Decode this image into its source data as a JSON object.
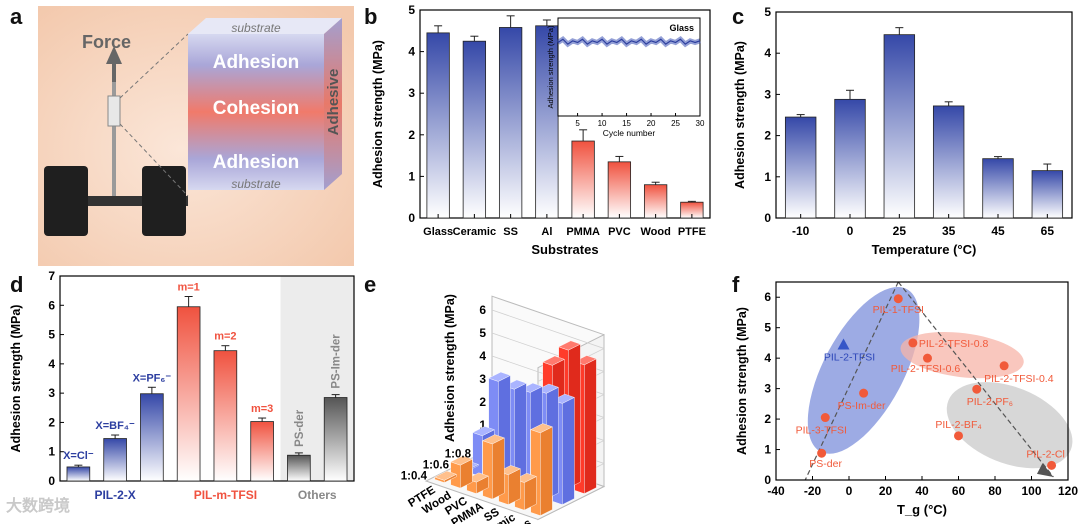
{
  "panels": {
    "a": "a",
    "b": "b",
    "c": "c",
    "d": "d",
    "e": "e",
    "f": "f"
  },
  "panel_a": {
    "force_label": "Force",
    "layers": [
      "substrate",
      "Adhesion",
      "Cohesion",
      "Adhesion",
      "substrate"
    ],
    "side_label": "Adhesive"
  },
  "watermark": "大数跨境",
  "chart_data": [
    {
      "id": "b",
      "type": "bar",
      "xlabel": "Substrates",
      "ylabel": "Adhesion strength (MPa)",
      "ylim": [
        0,
        5
      ],
      "yticks": [
        0,
        1,
        2,
        3,
        4,
        5
      ],
      "categories": [
        "Glass",
        "Ceramic",
        "SS",
        "Al",
        "PMMA",
        "PVC",
        "Wood",
        "PTFE"
      ],
      "values": [
        4.45,
        4.25,
        4.58,
        4.62,
        1.85,
        1.35,
        0.8,
        0.38
      ],
      "errors": [
        0.17,
        0.12,
        0.28,
        0.14,
        0.27,
        0.13,
        0.06,
        0.02
      ],
      "colors": [
        "blue",
        "blue",
        "blue",
        "blue",
        "red",
        "red",
        "red",
        "red"
      ],
      "inset": {
        "type": "line",
        "title": "Glass",
        "xlabel": "Cycle number",
        "ylabel": "Adhesion strength (MPa)",
        "xticks": [
          5,
          10,
          15,
          20,
          25,
          30
        ],
        "xlim": [
          1,
          30
        ],
        "ylim": [
          0,
          6
        ],
        "x": [
          1,
          2,
          3,
          4,
          5,
          6,
          7,
          8,
          9,
          10,
          11,
          12,
          13,
          14,
          15,
          16,
          17,
          18,
          19,
          20,
          21,
          22,
          23,
          24,
          25,
          26,
          27,
          28,
          29,
          30
        ],
        "y": [
          4.5,
          4.7,
          4.4,
          4.6,
          4.5,
          4.7,
          4.4,
          4.6,
          4.5,
          4.7,
          4.4,
          4.6,
          4.5,
          4.7,
          4.4,
          4.6,
          4.5,
          4.7,
          4.4,
          4.6,
          4.5,
          4.7,
          4.4,
          4.6,
          4.5,
          4.7,
          4.4,
          4.6,
          4.5,
          4.6
        ]
      }
    },
    {
      "id": "c",
      "type": "bar",
      "xlabel": "Temperature (°C)",
      "ylabel": "Adhesion strength (MPa)",
      "ylim": [
        0,
        5
      ],
      "yticks": [
        0,
        1,
        2,
        3,
        4,
        5
      ],
      "categories": [
        "-10",
        "0",
        "25",
        "35",
        "45",
        "65"
      ],
      "values": [
        2.45,
        2.88,
        4.45,
        2.72,
        1.44,
        1.15
      ],
      "errors": [
        0.06,
        0.22,
        0.17,
        0.1,
        0.05,
        0.16
      ]
    },
    {
      "id": "d",
      "type": "bar",
      "ylabel": "Adhesion strength (MPa)",
      "ylim": [
        0,
        7
      ],
      "yticks": [
        0,
        1,
        2,
        3,
        4,
        5,
        6,
        7
      ],
      "categories": [
        "X=Cl⁻",
        "X=BF₄⁻",
        "X=PF₆⁻",
        "m=1",
        "m=2",
        "m=3",
        "PS-der",
        "PS-Im-der"
      ],
      "values": [
        0.48,
        1.45,
        2.98,
        5.95,
        4.45,
        2.03,
        0.88,
        2.85
      ],
      "errors": [
        0.06,
        0.12,
        0.22,
        0.35,
        0.17,
        0.12,
        0.08,
        0.1
      ],
      "groups": [
        "PIL-2-X",
        "PIL-m-TFSI",
        "Others"
      ],
      "colors": [
        "blue",
        "blue",
        "blue",
        "red",
        "red",
        "red",
        "gray",
        "gray"
      ]
    },
    {
      "id": "e",
      "type": "bar3d",
      "zlabel": "Adhesion strength (MPa)",
      "zticks": [
        1,
        2,
        3,
        4,
        5,
        6
      ],
      "rows": [
        "1:0.8",
        "1:0.6",
        "1:0.4"
      ],
      "cols": [
        "PTFE",
        "Wood",
        "PVC",
        "PMMA",
        "SS",
        "Ceramic",
        "Glass"
      ],
      "values": [
        [
          0.2,
          0.3,
          2.0,
          3.0,
          5.1,
          6.0,
          5.6
        ],
        [
          0.05,
          1.8,
          4.4,
          4.3,
          4.4,
          4.6,
          4.4
        ],
        [
          0.1,
          1.0,
          0.5,
          2.4,
          1.3,
          1.2,
          3.6
        ]
      ],
      "colors": [
        "red",
        "blue",
        "orange"
      ]
    },
    {
      "id": "f",
      "type": "scatter",
      "xlabel": "T_g (°C)",
      "ylabel": "Adhesion strength (MPa)",
      "xlim": [
        -40,
        120
      ],
      "ylim": [
        0,
        6.5
      ],
      "xticks": [
        -40,
        -20,
        0,
        20,
        40,
        60,
        80,
        100,
        120
      ],
      "yticks": [
        0,
        1,
        2,
        3,
        4,
        5,
        6
      ],
      "points": [
        {
          "label": "PIL-1-TFSI",
          "x": 27,
          "y": 5.95,
          "marker": "circle"
        },
        {
          "label": "PIL-2-TFSI",
          "x": -3,
          "y": 4.45,
          "marker": "triangle"
        },
        {
          "label": "PIL-2-TFSI-0.8",
          "x": 35,
          "y": 4.5,
          "marker": "circle"
        },
        {
          "label": "PIL-2-TFSI-0.6",
          "x": 43,
          "y": 4.0,
          "marker": "circle"
        },
        {
          "label": "PIL-2-TFSI-0.4",
          "x": 85,
          "y": 3.75,
          "marker": "circle"
        },
        {
          "label": "PS-Im-der",
          "x": 8,
          "y": 2.85,
          "marker": "circle"
        },
        {
          "label": "PIL-2-PF₆",
          "x": 70,
          "y": 2.98,
          "marker": "circle"
        },
        {
          "label": "PIL-3-TFSI",
          "x": -13,
          "y": 2.05,
          "marker": "circle"
        },
        {
          "label": "PIL-2-BF₄",
          "x": 60,
          "y": 1.45,
          "marker": "circle"
        },
        {
          "label": "PS-der",
          "x": -15,
          "y": 0.88,
          "marker": "circle"
        },
        {
          "label": "PIL-2-Cl",
          "x": 111,
          "y": 0.48,
          "marker": "circle"
        }
      ]
    }
  ]
}
